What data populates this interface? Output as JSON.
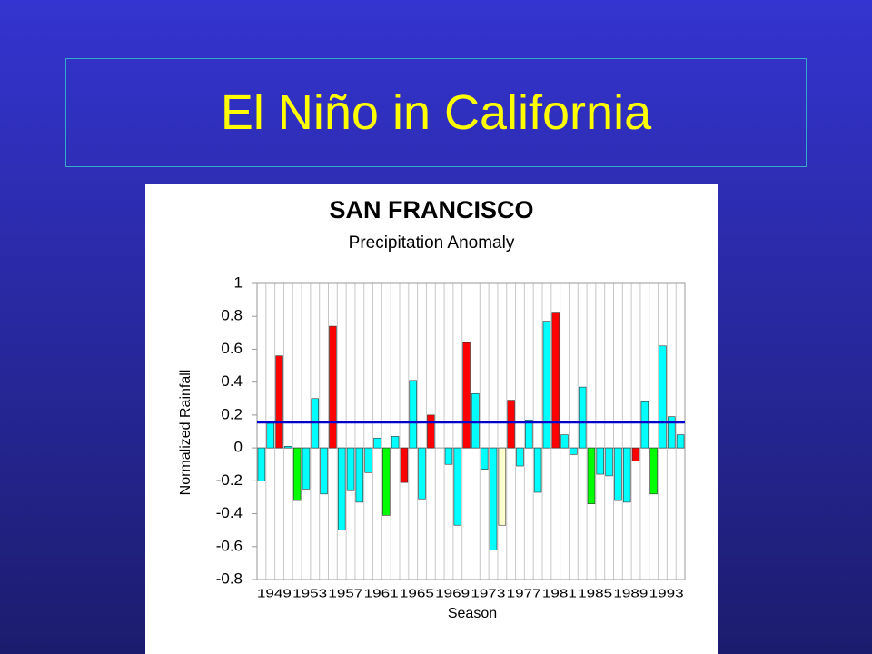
{
  "slide_title": "El Niño in California",
  "chart_data": {
    "type": "bar",
    "title": "SAN FRANCISCO",
    "subtitle": "Precipitation Anomaly",
    "x_label": "Season",
    "y_label": "Normalized Rainfall",
    "categories": [
      "1949",
      null,
      null,
      null,
      "1953",
      null,
      null,
      null,
      "1957",
      null,
      null,
      null,
      "1961",
      null,
      null,
      null,
      "1965",
      null,
      null,
      null,
      "1969",
      null,
      null,
      null,
      "1973",
      null,
      null,
      null,
      "1977",
      null,
      null,
      null,
      "1981",
      null,
      null,
      null,
      "1985",
      null,
      null,
      null,
      "1989",
      null,
      null,
      null,
      "1993",
      null,
      null,
      null
    ],
    "values": [
      -0.2,
      0.15,
      0.56,
      0.01,
      -0.32,
      -0.25,
      0.3,
      -0.28,
      0.74,
      -0.5,
      -0.26,
      -0.33,
      -0.15,
      0.06,
      -0.41,
      0.07,
      -0.21,
      0.41,
      -0.31,
      0.2,
      0.0,
      -0.1,
      -0.47,
      0.64,
      0.33,
      -0.13,
      -0.62,
      -0.47,
      0.29,
      -0.11,
      0.17,
      -0.27,
      0.77,
      0.82,
      0.08,
      -0.04,
      0.37,
      -0.34,
      -0.16,
      -0.17,
      -0.32,
      -0.33,
      -0.08,
      0.28,
      -0.28,
      0.62,
      0.19,
      0.08
    ],
    "colors": [
      "#00ffff",
      "#00ffff",
      "#ff0000",
      "#00ffff",
      "#00ff00",
      "#00ffff",
      "#00ffff",
      "#00ffff",
      "#ff0000",
      "#00ffff",
      "#00ffff",
      "#00ffff",
      "#00ffff",
      "#00ffff",
      "#00ff00",
      "#00ffff",
      "#ff0000",
      "#00ffff",
      "#00ffff",
      "#ff0000",
      "#00ff00",
      "#00ffff",
      "#00ffff",
      "#ff0000",
      "#00ffff",
      "#00ffff",
      "#00ffff",
      "#ffffcc",
      "#ff0000",
      "#00ffff",
      "#00ffff",
      "#00ffff",
      "#00ffff",
      "#ff0000",
      "#00ffff",
      "#00ffff",
      "#00ffff",
      "#00ff00",
      "#00ffff",
      "#00ffff",
      "#00ffff",
      "#00ffff",
      "#ff0000",
      "#00ffff",
      "#00ff00",
      "#00ffff",
      "#00ffff",
      "#00ffff"
    ],
    "mean_line": {
      "value": 0.155,
      "color": "#0000cc"
    },
    "ylim": [
      -0.8,
      1
    ],
    "yticks": [
      -0.8,
      -0.6,
      -0.4,
      -0.2,
      0,
      0.2,
      0.4,
      0.6,
      0.8,
      1
    ],
    "grid": true
  }
}
